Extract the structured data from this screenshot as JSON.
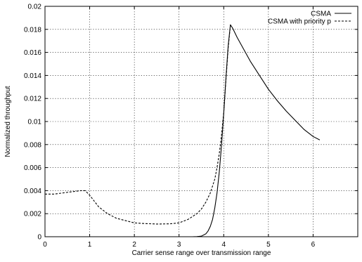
{
  "chart_data": {
    "type": "line",
    "title": "",
    "xlabel": "Carrier sense range over transmission range",
    "ylabel": "Normalized throughput",
    "xlim": [
      0,
      7
    ],
    "ylim": [
      0,
      0.02
    ],
    "x_ticks": [
      "0",
      "1",
      "2",
      "3",
      "4",
      "5",
      "6"
    ],
    "y_ticks": [
      "0",
      "0.002",
      "0.004",
      "0.006",
      "0.008",
      "0.01",
      "0.012",
      "0.014",
      "0.016",
      "0.018",
      "0.02"
    ],
    "grid": true,
    "legend_position": "top-right",
    "series": [
      {
        "name": "CSMA",
        "line_style": "solid",
        "color": "#000000",
        "x": [
          3.2,
          3.3,
          3.4,
          3.5,
          3.6,
          3.65,
          3.7,
          3.75,
          3.8,
          3.85,
          3.9,
          3.95,
          4.0,
          4.05,
          4.1,
          4.15,
          4.2,
          4.3,
          4.4,
          4.5,
          4.6,
          4.8,
          5.0,
          5.2,
          5.4,
          5.6,
          5.8,
          6.0,
          6.15
        ],
        "y": [
          0,
          0,
          1e-05,
          5e-05,
          0.00025,
          0.0005,
          0.0009,
          0.0015,
          0.0025,
          0.0038,
          0.0056,
          0.0079,
          0.0107,
          0.0138,
          0.0166,
          0.0184,
          0.0181,
          0.0173,
          0.0166,
          0.0159,
          0.0152,
          0.014,
          0.0128,
          0.0118,
          0.0109,
          0.0101,
          0.0093,
          0.0087,
          0.0084
        ]
      },
      {
        "name": "CSMA with priority p",
        "line_style": "dashed",
        "color": "#000000",
        "x": [
          0,
          0.2,
          0.4,
          0.6,
          0.8,
          0.9,
          1.0,
          1.1,
          1.2,
          1.4,
          1.6,
          1.8,
          2.0,
          2.2,
          2.5,
          2.8,
          3.0,
          3.2,
          3.4,
          3.5,
          3.6,
          3.7,
          3.8,
          3.85,
          3.9,
          3.95,
          4.0,
          4.05,
          4.1,
          4.15
        ],
        "y": [
          0.0037,
          0.0037,
          0.0038,
          0.0039,
          0.004,
          0.004,
          0.0036,
          0.0031,
          0.0026,
          0.002,
          0.0016,
          0.0014,
          0.0012,
          0.00115,
          0.0011,
          0.00112,
          0.0012,
          0.0015,
          0.002,
          0.0024,
          0.003,
          0.0038,
          0.005,
          0.006,
          0.0072,
          0.0088,
          0.0108,
          0.0136,
          0.0164,
          0.0184
        ]
      }
    ]
  }
}
